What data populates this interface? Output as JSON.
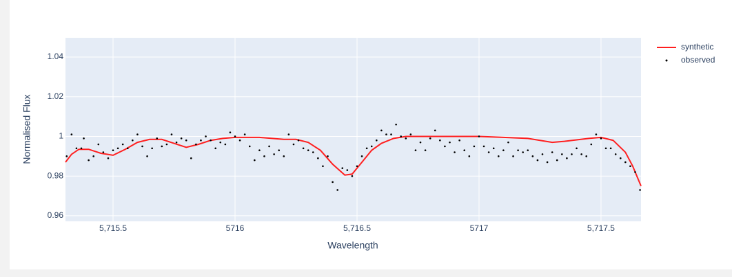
{
  "chart_data": {
    "type": "line",
    "xlabel": "Wavelength",
    "ylabel": "Normalised Flux",
    "xlim": [
      5715.305,
      5717.664
    ],
    "ylim": [
      0.9572,
      1.0497
    ],
    "xticks": [
      {
        "value": 5715.5,
        "label": "5,715.5"
      },
      5716,
      {
        "value": 5716.5,
        "label": "5,716.5"
      },
      5717,
      {
        "value": 5717.5,
        "label": "5,717.5"
      }
    ],
    "yticks": [
      0.96,
      0.98,
      1,
      1.02,
      1.04
    ],
    "grid": true,
    "legend": "top-right",
    "series": [
      {
        "name": "synthetic",
        "color": "#ff1f1f",
        "mode": "lines",
        "x": [
          5715.305,
          5715.33,
          5715.36,
          5715.4,
          5715.45,
          5715.5,
          5715.55,
          5715.6,
          5715.65,
          5715.7,
          5715.75,
          5715.8,
          5715.85,
          5715.9,
          5715.95,
          5716.0,
          5716.1,
          5716.2,
          5716.25,
          5716.3,
          5716.35,
          5716.4,
          5716.45,
          5716.48,
          5716.52,
          5716.56,
          5716.6,
          5716.65,
          5716.7,
          5716.8,
          5717.0,
          5717.1,
          5717.2,
          5717.3,
          5717.35,
          5717.45,
          5717.5,
          5717.55,
          5717.6,
          5717.63,
          5717.664
        ],
        "values": [
          0.987,
          0.991,
          0.9935,
          0.9935,
          0.9915,
          0.9905,
          0.9935,
          0.997,
          0.9985,
          0.9985,
          0.9965,
          0.9945,
          0.996,
          0.998,
          0.999,
          0.9995,
          0.9995,
          0.9985,
          0.9985,
          0.997,
          0.993,
          0.986,
          0.9805,
          0.981,
          0.987,
          0.993,
          0.9965,
          0.999,
          1.0,
          1.0,
          1.0,
          0.9995,
          0.999,
          0.997,
          0.9975,
          0.999,
          0.9995,
          0.998,
          0.992,
          0.985,
          0.975
        ]
      },
      {
        "name": "observed",
        "color": "#000000",
        "mode": "markers",
        "x": [
          5715.31,
          5715.33,
          5715.35,
          5715.37,
          5715.38,
          5715.4,
          5715.42,
          5715.44,
          5715.46,
          5715.48,
          5715.5,
          5715.52,
          5715.54,
          5715.56,
          5715.58,
          5715.6,
          5715.62,
          5715.64,
          5715.66,
          5715.68,
          5715.7,
          5715.72,
          5715.74,
          5715.76,
          5715.78,
          5715.8,
          5715.82,
          5715.84,
          5715.86,
          5715.88,
          5715.9,
          5715.92,
          5715.94,
          5715.96,
          5715.98,
          5716.0,
          5716.02,
          5716.04,
          5716.06,
          5716.08,
          5716.1,
          5716.12,
          5716.14,
          5716.16,
          5716.18,
          5716.2,
          5716.22,
          5716.24,
          5716.26,
          5716.28,
          5716.3,
          5716.32,
          5716.34,
          5716.36,
          5716.38,
          5716.4,
          5716.42,
          5716.44,
          5716.46,
          5716.48,
          5716.5,
          5716.52,
          5716.54,
          5716.56,
          5716.58,
          5716.6,
          5716.62,
          5716.64,
          5716.66,
          5716.68,
          5716.7,
          5716.72,
          5716.74,
          5716.76,
          5716.78,
          5716.8,
          5716.82,
          5716.84,
          5716.86,
          5716.88,
          5716.9,
          5716.92,
          5716.94,
          5716.96,
          5716.98,
          5717.0,
          5717.02,
          5717.04,
          5717.06,
          5717.08,
          5717.1,
          5717.12,
          5717.14,
          5717.16,
          5717.18,
          5717.2,
          5717.22,
          5717.24,
          5717.26,
          5717.28,
          5717.3,
          5717.32,
          5717.34,
          5717.36,
          5717.38,
          5717.4,
          5717.42,
          5717.44,
          5717.46,
          5717.48,
          5717.5,
          5717.52,
          5717.54,
          5717.56,
          5717.58,
          5717.6,
          5717.62,
          5717.64,
          5717.66
        ],
        "values": [
          0.99,
          1.001,
          0.994,
          0.994,
          0.999,
          0.988,
          0.99,
          0.996,
          0.992,
          0.989,
          0.993,
          0.994,
          0.996,
          0.994,
          0.998,
          1.001,
          0.995,
          0.99,
          0.994,
          0.999,
          0.995,
          0.996,
          1.001,
          0.997,
          0.999,
          0.998,
          0.989,
          0.996,
          0.998,
          1.0,
          0.998,
          0.994,
          0.997,
          0.996,
          1.002,
          1.0,
          0.998,
          1.001,
          0.995,
          0.988,
          0.993,
          0.99,
          0.995,
          0.991,
          0.993,
          0.99,
          1.001,
          0.996,
          0.998,
          0.994,
          0.993,
          0.992,
          0.989,
          0.985,
          0.99,
          0.977,
          0.973,
          0.984,
          0.983,
          0.98,
          0.985,
          0.99,
          0.994,
          0.995,
          0.998,
          1.003,
          1.001,
          1.001,
          1.006,
          1.0,
          0.999,
          1.001,
          0.993,
          0.997,
          0.993,
          0.999,
          1.003,
          0.998,
          0.995,
          0.997,
          0.992,
          0.998,
          0.993,
          0.99,
          0.995,
          1.0,
          0.995,
          0.992,
          0.994,
          0.99,
          0.993,
          0.997,
          0.99,
          0.993,
          0.992,
          0.993,
          0.99,
          0.988,
          0.991,
          0.987,
          0.992,
          0.988,
          0.991,
          0.989,
          0.991,
          0.994,
          0.991,
          0.99,
          0.996,
          1.001,
          0.999,
          0.994,
          0.994,
          0.991,
          0.989,
          0.987,
          0.985,
          0.982,
          0.973
        ]
      }
    ]
  }
}
